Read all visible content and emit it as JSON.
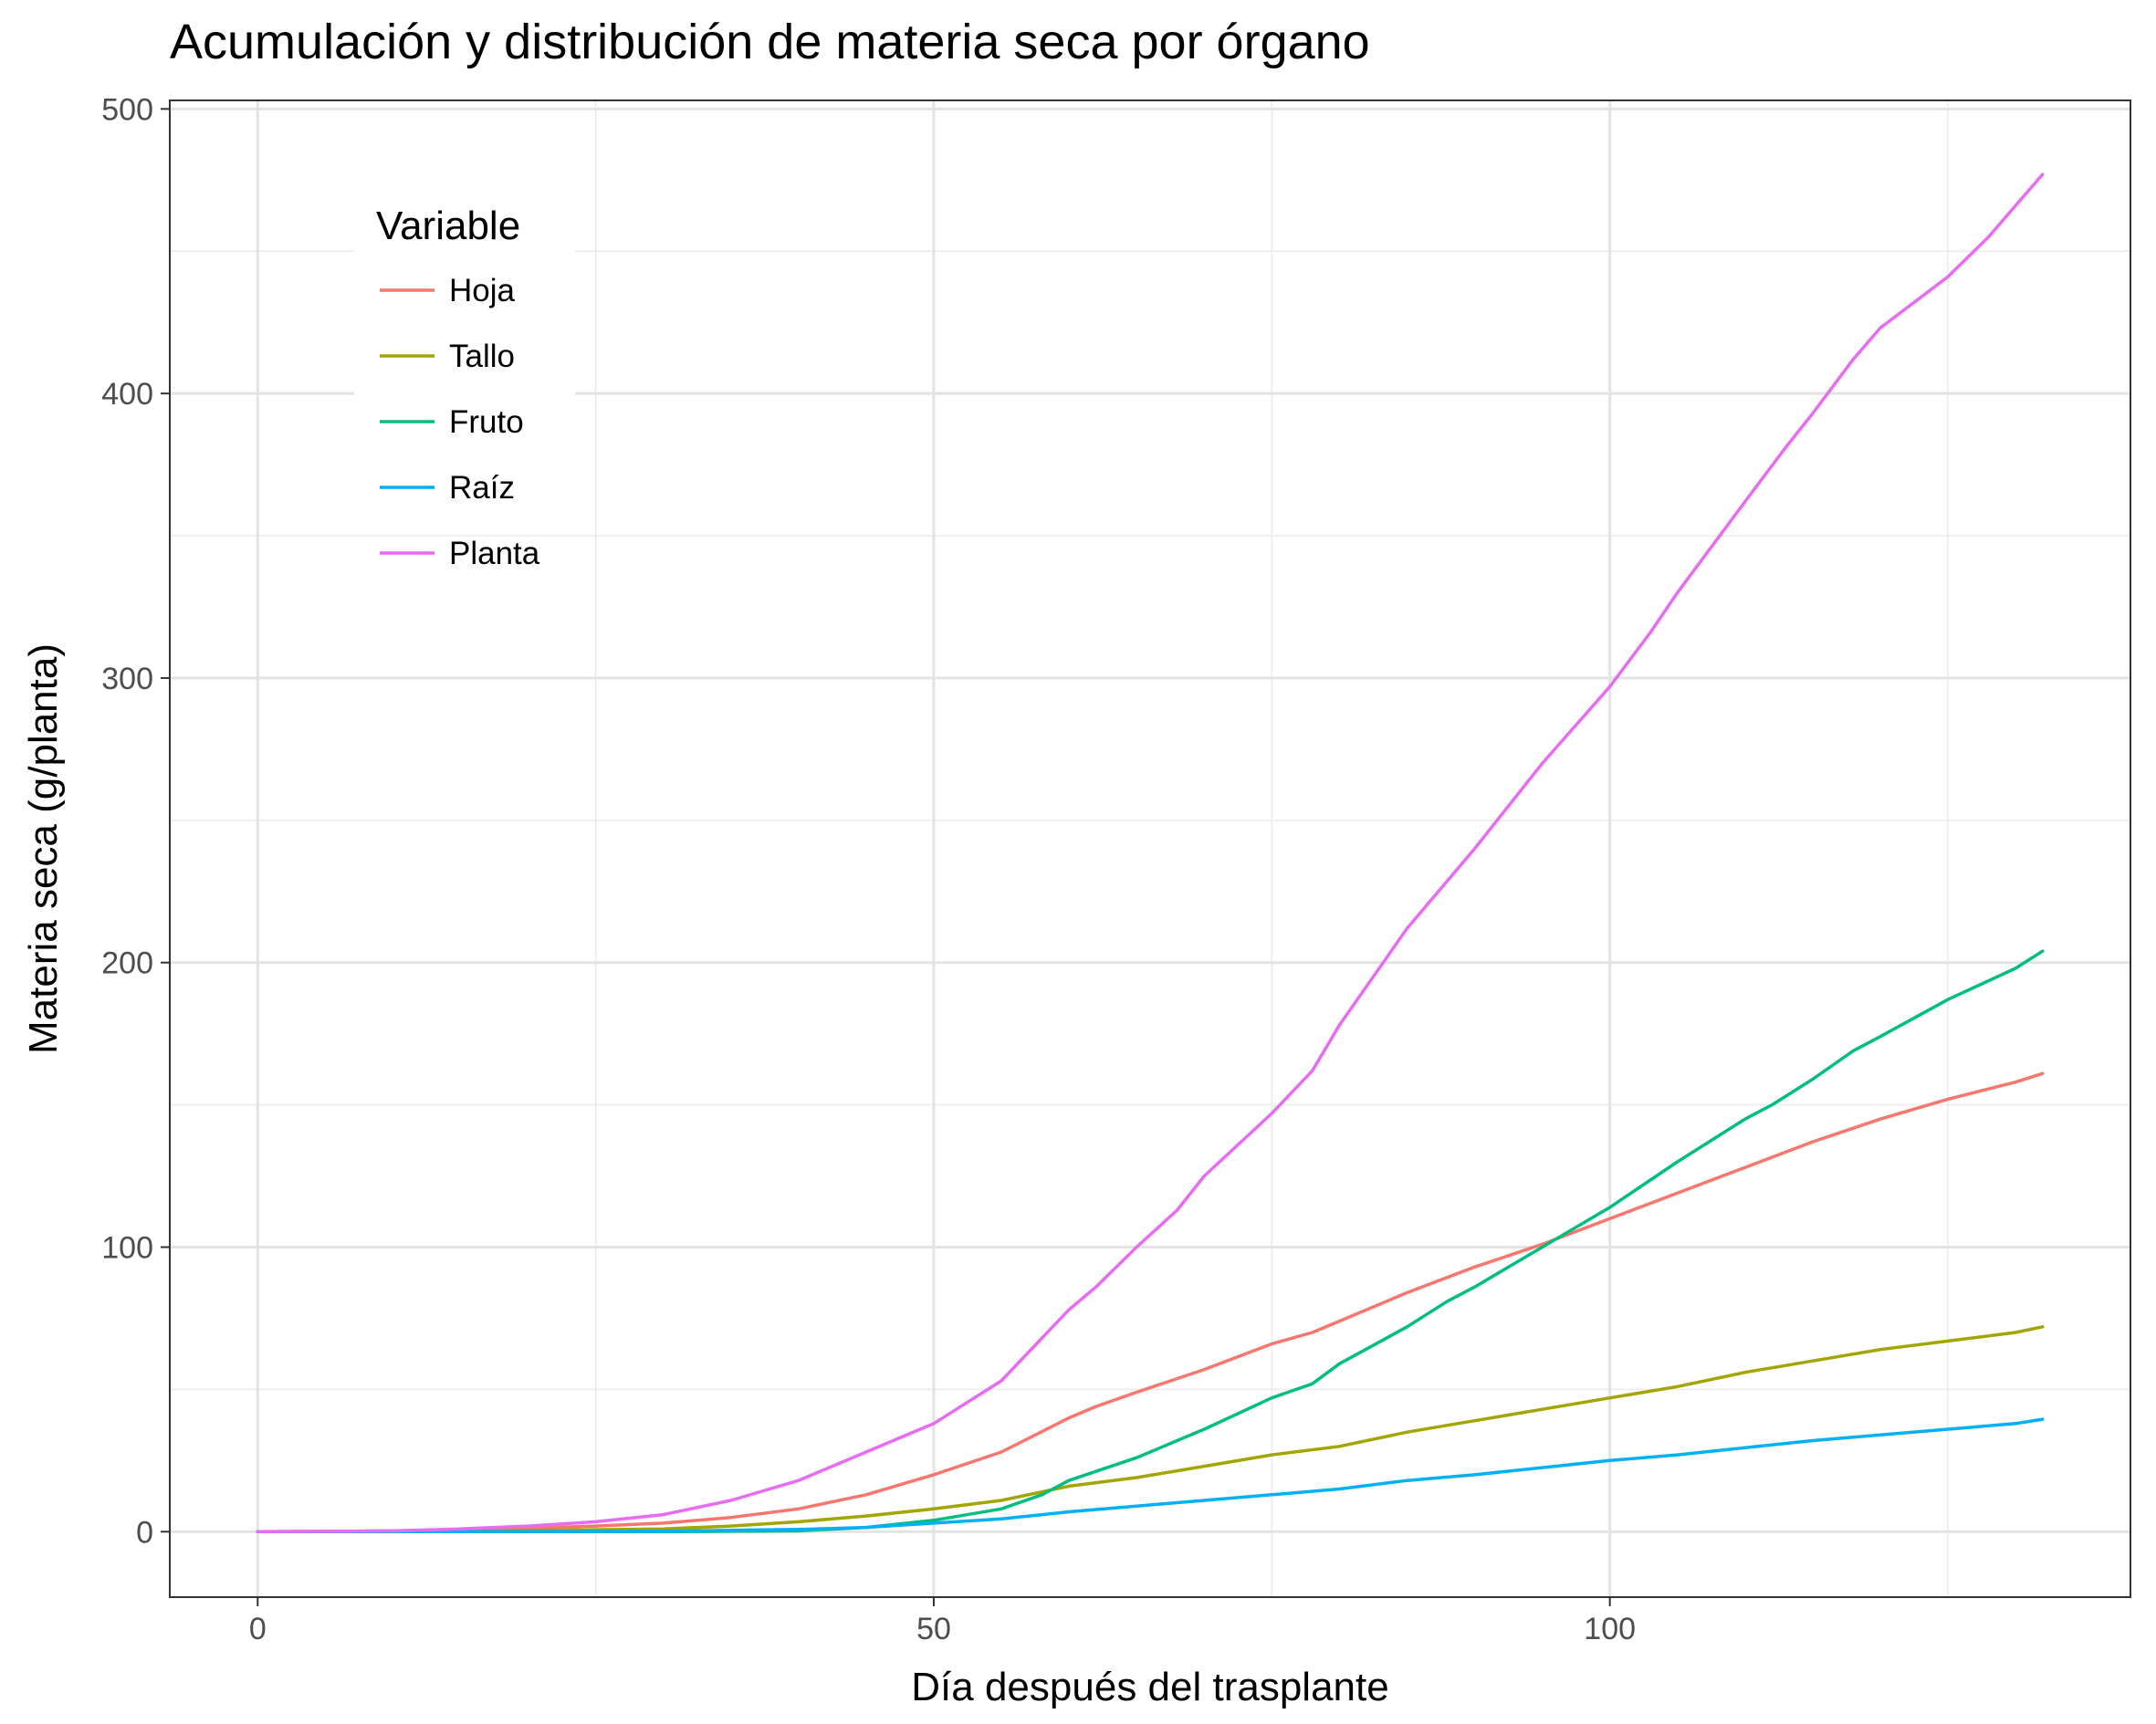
{
  "chart_data": {
    "type": "line",
    "title": "Acumulación y distribución de materia seca por órgano",
    "xlabel": "Día después del trasplante",
    "ylabel": "Materia seca (g/planta)",
    "xlim": [
      -6.5,
      138.5
    ],
    "ylim": [
      -23,
      503
    ],
    "xticks": [
      0,
      50,
      100
    ],
    "xtick_labels": [
      "0",
      "50",
      "100"
    ],
    "x_minor_gridlines": [
      25,
      75,
      125
    ],
    "yticks": [
      0,
      100,
      200,
      300,
      400,
      500
    ],
    "ytick_labels": [
      "0",
      "100",
      "200",
      "300",
      "400",
      "500"
    ],
    "y_minor_gridlines": [
      50,
      150,
      250,
      350,
      450
    ],
    "grid": true,
    "legend": {
      "title": "Variable",
      "position": "top-left, inside plot"
    },
    "series": [
      {
        "name": "Hoja",
        "color": "#F8766D",
        "points": [
          [
            0,
            0
          ],
          [
            10,
            0.3
          ],
          [
            20,
            1.2
          ],
          [
            25,
            2
          ],
          [
            30,
            3
          ],
          [
            35,
            5
          ],
          [
            40,
            8
          ],
          [
            45,
            13
          ],
          [
            50,
            20
          ],
          [
            55,
            28
          ],
          [
            60,
            40
          ],
          [
            62,
            44
          ],
          [
            65,
            49
          ],
          [
            70,
            57
          ],
          [
            75,
            66
          ],
          [
            78,
            70
          ],
          [
            80,
            74
          ],
          [
            85,
            84
          ],
          [
            90,
            93
          ],
          [
            95,
            101
          ],
          [
            100,
            110
          ],
          [
            105,
            119
          ],
          [
            110,
            128
          ],
          [
            115,
            137
          ],
          [
            120,
            145
          ],
          [
            125,
            152
          ],
          [
            130,
            158
          ],
          [
            132,
            161
          ]
        ]
      },
      {
        "name": "Tallo",
        "color": "#A3A500",
        "points": [
          [
            0,
            0
          ],
          [
            10,
            0.1
          ],
          [
            20,
            0.4
          ],
          [
            25,
            0.7
          ],
          [
            30,
            1
          ],
          [
            35,
            2
          ],
          [
            40,
            3.5
          ],
          [
            45,
            5.5
          ],
          [
            50,
            8
          ],
          [
            55,
            11
          ],
          [
            60,
            16
          ],
          [
            65,
            19
          ],
          [
            70,
            23
          ],
          [
            75,
            27
          ],
          [
            80,
            30
          ],
          [
            85,
            35
          ],
          [
            90,
            39
          ],
          [
            95,
            43
          ],
          [
            100,
            47
          ],
          [
            105,
            51
          ],
          [
            110,
            56
          ],
          [
            115,
            60
          ],
          [
            120,
            64
          ],
          [
            125,
            67
          ],
          [
            130,
            70
          ],
          [
            132,
            72
          ]
        ]
      },
      {
        "name": "Fruto",
        "color": "#00BF7D",
        "points": [
          [
            0,
            0
          ],
          [
            20,
            0
          ],
          [
            30,
            0
          ],
          [
            40,
            0.3
          ],
          [
            45,
            1.5
          ],
          [
            50,
            4
          ],
          [
            55,
            8
          ],
          [
            58,
            13
          ],
          [
            60,
            18
          ],
          [
            65,
            26
          ],
          [
            70,
            36
          ],
          [
            75,
            47
          ],
          [
            78,
            52
          ],
          [
            80,
            59
          ],
          [
            85,
            72
          ],
          [
            88,
            81
          ],
          [
            90,
            86
          ],
          [
            95,
            100
          ],
          [
            100,
            114
          ],
          [
            105,
            130
          ],
          [
            110,
            145
          ],
          [
            112,
            150
          ],
          [
            115,
            159
          ],
          [
            118,
            169
          ],
          [
            120,
            174
          ],
          [
            125,
            187
          ],
          [
            130,
            198
          ],
          [
            132,
            204
          ]
        ]
      },
      {
        "name": "Raíz",
        "color": "#00B0F6",
        "points": [
          [
            0,
            0
          ],
          [
            20,
            0
          ],
          [
            30,
            0.2
          ],
          [
            40,
            0.8
          ],
          [
            45,
            1.5
          ],
          [
            50,
            3
          ],
          [
            55,
            4.5
          ],
          [
            60,
            7
          ],
          [
            65,
            9
          ],
          [
            70,
            11
          ],
          [
            75,
            13
          ],
          [
            80,
            15
          ],
          [
            85,
            18
          ],
          [
            90,
            20
          ],
          [
            95,
            22.5
          ],
          [
            100,
            25
          ],
          [
            105,
            27
          ],
          [
            110,
            29.5
          ],
          [
            115,
            32
          ],
          [
            120,
            34
          ],
          [
            125,
            36
          ],
          [
            130,
            38
          ],
          [
            132,
            39.5
          ]
        ]
      },
      {
        "name": "Planta",
        "color": "#E76BF3",
        "points": [
          [
            0,
            0
          ],
          [
            10,
            0.3
          ],
          [
            15,
            1
          ],
          [
            20,
            2
          ],
          [
            25,
            3.5
          ],
          [
            30,
            6
          ],
          [
            35,
            11
          ],
          [
            40,
            18
          ],
          [
            45,
            28
          ],
          [
            50,
            38
          ],
          [
            55,
            53
          ],
          [
            60,
            78
          ],
          [
            62,
            86
          ],
          [
            65,
            100
          ],
          [
            68,
            113
          ],
          [
            70,
            125
          ],
          [
            75,
            147
          ],
          [
            78,
            162
          ],
          [
            80,
            178
          ],
          [
            85,
            212
          ],
          [
            90,
            240
          ],
          [
            95,
            270
          ],
          [
            100,
            297
          ],
          [
            103,
            316
          ],
          [
            105,
            330
          ],
          [
            110,
            362
          ],
          [
            113,
            381
          ],
          [
            115,
            393
          ],
          [
            118,
            412
          ],
          [
            120,
            423
          ],
          [
            125,
            441
          ],
          [
            128,
            455
          ],
          [
            130,
            466
          ],
          [
            132,
            477
          ]
        ]
      }
    ]
  }
}
